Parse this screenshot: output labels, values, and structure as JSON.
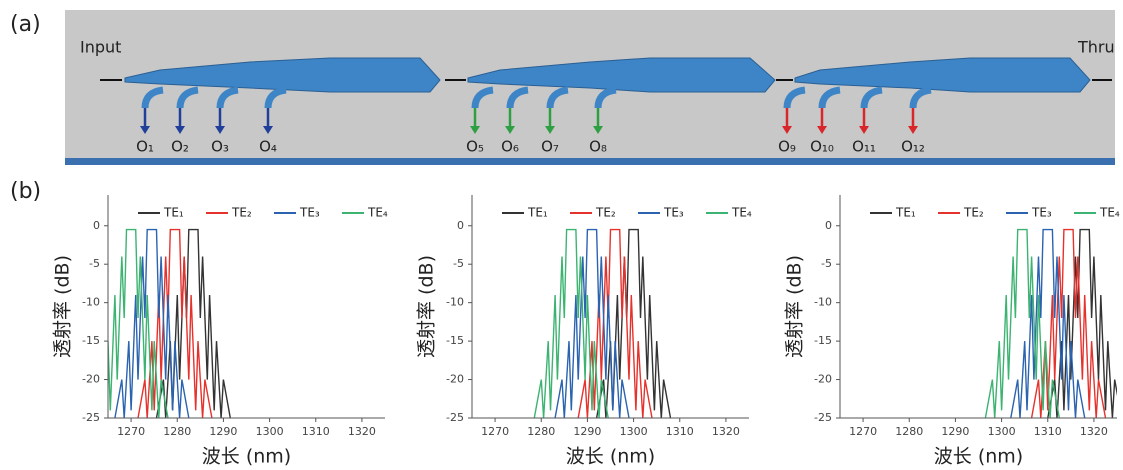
{
  "diagram": {
    "panel_a": "(a)",
    "panel_b": "(b)",
    "input": "Input",
    "thru": "Thru",
    "outputs": [
      "O₁",
      "O₂",
      "O₃",
      "O₄",
      "O₅",
      "O₆",
      "O₇",
      "O₈",
      "O₉",
      "O₁₀",
      "O₁₁",
      "O₁₂"
    ]
  },
  "chart_data": [
    {
      "type": "line",
      "x_label": "波长 (nm)",
      "y_label": "透射率 (dB)",
      "xlim": [
        1265,
        1325
      ],
      "ylim": [
        -25,
        4
      ],
      "xticks": [
        1270,
        1280,
        1290,
        1300,
        1310,
        1320
      ],
      "yticks": [
        -25,
        -20,
        -15,
        -10,
        -5,
        0
      ],
      "series": [
        {
          "name": "TE₁",
          "color": "#333333",
          "x": [
            1275.5,
            1277,
            1277.5,
            1278.5,
            1279,
            1280,
            1280.5,
            1281.5,
            1282,
            1282.5,
            1284.5,
            1285,
            1285.5,
            1286.5,
            1287,
            1288,
            1288.5,
            1289.5,
            1290,
            1291.5
          ],
          "values": [
            -25,
            -20,
            -25,
            -15,
            -24,
            -9,
            -20,
            -4,
            -12,
            -0.5,
            -0.5,
            -12,
            -4,
            -20,
            -9,
            -24,
            -15,
            -25,
            -20,
            -25
          ]
        },
        {
          "name": "TE₂",
          "color": "#e5322d",
          "x": [
            1271.5,
            1273,
            1273.5,
            1274.5,
            1275,
            1276,
            1276.5,
            1277.5,
            1278,
            1278.5,
            1280.5,
            1281,
            1281.5,
            1282.5,
            1283,
            1284,
            1284.5,
            1285.5,
            1286,
            1287.5
          ],
          "values": [
            -25,
            -20,
            -25,
            -15,
            -24,
            -9,
            -20,
            -4,
            -12,
            -0.5,
            -0.5,
            -12,
            -4,
            -20,
            -9,
            -24,
            -15,
            -25,
            -20,
            -25
          ]
        },
        {
          "name": "TE₃",
          "color": "#2b63b0",
          "x": [
            1266.5,
            1268,
            1268.5,
            1269.5,
            1270,
            1271,
            1271.5,
            1272.5,
            1273,
            1273.5,
            1275.5,
            1276,
            1276.5,
            1277.5,
            1278,
            1279,
            1279.5,
            1280.5,
            1281,
            1282.5
          ],
          "values": [
            -25,
            -20,
            -25,
            -15,
            -24,
            -9,
            -20,
            -4,
            -12,
            -0.5,
            -0.5,
            -12,
            -4,
            -20,
            -9,
            -24,
            -15,
            -25,
            -20,
            -25
          ]
        },
        {
          "name": "TE₄",
          "color": "#3cb371",
          "x": [
            1262,
            1263.5,
            1264,
            1265,
            1265.5,
            1266.5,
            1267,
            1268,
            1268.5,
            1269,
            1271,
            1271.5,
            1272,
            1273,
            1273.5,
            1274.5,
            1275,
            1276,
            1276.5,
            1278
          ],
          "values": [
            -25,
            -20,
            -25,
            -15,
            -24,
            -9,
            -20,
            -4,
            -12,
            -0.5,
            -0.5,
            -12,
            -4,
            -20,
            -9,
            -24,
            -15,
            -25,
            -20,
            -25
          ]
        }
      ]
    },
    {
      "type": "line",
      "x_label": "波长 (nm)",
      "y_label": "透射率 (dB)",
      "xlim": [
        1265,
        1325
      ],
      "ylim": [
        -25,
        4
      ],
      "xticks": [
        1270,
        1280,
        1290,
        1300,
        1310,
        1320
      ],
      "yticks": [
        -25,
        -20,
        -15,
        -10,
        -5,
        0
      ],
      "series": [
        {
          "name": "TE₁",
          "color": "#333333",
          "x": [
            1292,
            1293.5,
            1294,
            1295,
            1295.5,
            1296.5,
            1297,
            1298,
            1298.5,
            1299,
            1301,
            1301.5,
            1302,
            1303,
            1303.5,
            1304.5,
            1305,
            1306,
            1306.5,
            1308
          ],
          "values": [
            -25,
            -20,
            -25,
            -15,
            -24,
            -9,
            -20,
            -4,
            -12,
            -0.5,
            -0.5,
            -12,
            -4,
            -20,
            -9,
            -24,
            -15,
            -25,
            -20,
            -25
          ]
        },
        {
          "name": "TE₂",
          "color": "#e5322d",
          "x": [
            1288,
            1289.5,
            1290,
            1291,
            1291.5,
            1292.5,
            1293,
            1294,
            1294.5,
            1295,
            1297,
            1297.5,
            1298,
            1299,
            1299.5,
            1300.5,
            1301,
            1302,
            1302.5,
            1304
          ],
          "values": [
            -25,
            -20,
            -25,
            -15,
            -24,
            -9,
            -20,
            -4,
            -12,
            -0.5,
            -0.5,
            -12,
            -4,
            -20,
            -9,
            -24,
            -15,
            -25,
            -20,
            -25
          ]
        },
        {
          "name": "TE₃",
          "color": "#2b63b0",
          "x": [
            1283,
            1284.5,
            1285,
            1286,
            1286.5,
            1287.5,
            1288,
            1289,
            1289.5,
            1290,
            1292,
            1292.5,
            1293,
            1294,
            1294.5,
            1295.5,
            1296,
            1297,
            1297.5,
            1299
          ],
          "values": [
            -25,
            -20,
            -25,
            -15,
            -24,
            -9,
            -20,
            -4,
            -12,
            -0.5,
            -0.5,
            -12,
            -4,
            -20,
            -9,
            -24,
            -15,
            -25,
            -20,
            -25
          ]
        },
        {
          "name": "TE₄",
          "color": "#3cb371",
          "x": [
            1278.5,
            1280,
            1280.5,
            1281.5,
            1282,
            1283,
            1283.5,
            1284.5,
            1285,
            1285.5,
            1287.5,
            1288,
            1288.5,
            1289.5,
            1290,
            1291,
            1291.5,
            1292.5,
            1293,
            1294.5
          ],
          "values": [
            -25,
            -20,
            -25,
            -15,
            -24,
            -9,
            -20,
            -4,
            -12,
            -0.5,
            -0.5,
            -12,
            -4,
            -20,
            -9,
            -24,
            -15,
            -25,
            -20,
            -25
          ]
        }
      ]
    },
    {
      "type": "line",
      "x_label": "波长 (nm)",
      "y_label": "透射率 (dB)",
      "xlim": [
        1265,
        1325
      ],
      "ylim": [
        -25,
        4
      ],
      "xticks": [
        1270,
        1280,
        1290,
        1300,
        1310,
        1320
      ],
      "yticks": [
        -25,
        -20,
        -15,
        -10,
        -5,
        0
      ],
      "series": [
        {
          "name": "TE₁",
          "color": "#333333",
          "x": [
            1310,
            1311.5,
            1312,
            1313,
            1313.5,
            1314.5,
            1315,
            1316,
            1316.5,
            1317,
            1319,
            1319.5,
            1320,
            1321,
            1321.5,
            1322.5,
            1323,
            1324,
            1324.5,
            1326
          ],
          "values": [
            -25,
            -20,
            -25,
            -15,
            -24,
            -9,
            -20,
            -4,
            -12,
            -0.5,
            -0.5,
            -12,
            -4,
            -20,
            -9,
            -24,
            -15,
            -25,
            -20,
            -25
          ]
        },
        {
          "name": "TE₂",
          "color": "#e5322d",
          "x": [
            1306.5,
            1308,
            1308.5,
            1309.5,
            1310,
            1311,
            1311.5,
            1312.5,
            1313,
            1313.5,
            1315.5,
            1316,
            1316.5,
            1317.5,
            1318,
            1319,
            1319.5,
            1320.5,
            1321,
            1322.5
          ],
          "values": [
            -25,
            -20,
            -25,
            -15,
            -24,
            -9,
            -20,
            -4,
            -12,
            -0.5,
            -0.5,
            -12,
            -4,
            -20,
            -9,
            -24,
            -15,
            -25,
            -20,
            -25
          ]
        },
        {
          "name": "TE₃",
          "color": "#2b63b0",
          "x": [
            1302,
            1303.5,
            1304,
            1305,
            1305.5,
            1306.5,
            1307,
            1308,
            1308.5,
            1309,
            1311,
            1311.5,
            1312,
            1313,
            1313.5,
            1314.5,
            1315,
            1316,
            1316.5,
            1318
          ],
          "values": [
            -25,
            -20,
            -25,
            -15,
            -24,
            -9,
            -20,
            -4,
            -12,
            -0.5,
            -0.5,
            -12,
            -4,
            -20,
            -9,
            -24,
            -15,
            -25,
            -20,
            -25
          ]
        },
        {
          "name": "TE₄",
          "color": "#3cb371",
          "x": [
            1296.5,
            1298,
            1298.5,
            1299.5,
            1300,
            1301,
            1301.5,
            1302.5,
            1303,
            1303.5,
            1305.5,
            1306,
            1306.5,
            1307.5,
            1308,
            1309,
            1309.5,
            1310.5,
            1311,
            1312.5
          ],
          "values": [
            -25,
            -20,
            -25,
            -15,
            -24,
            -9,
            -20,
            -4,
            -12,
            -0.5,
            -0.5,
            -12,
            -4,
            -20,
            -9,
            -24,
            -15,
            -25,
            -20,
            -25
          ]
        }
      ]
    }
  ]
}
